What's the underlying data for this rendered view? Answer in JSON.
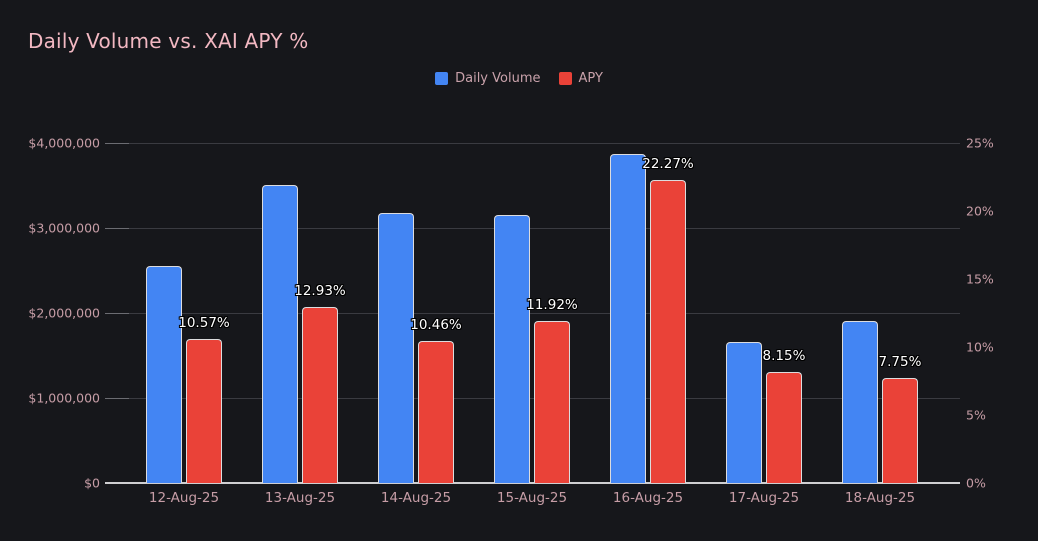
{
  "title": "Daily Volume vs. XAI APY %",
  "legend": [
    {
      "id": "daily-volume",
      "label": "Daily Volume",
      "color": "#4385F3"
    },
    {
      "id": "apy",
      "label": "APY",
      "color": "#EA4238"
    }
  ],
  "colors": {
    "background": "#16171B",
    "title_text": "#F2B8C2",
    "axis_text": "#C69DA6",
    "gridline": "#3A3B41",
    "axis_line": "#CFCFD2",
    "bar_border": "#DCDCDE",
    "volume_bar": "#4385F3",
    "apy_bar": "#EA4238",
    "value_label_text": "#FFFFFF"
  },
  "chart_data": {
    "type": "bar",
    "title": "Daily Volume vs. XAI APY %",
    "categories": [
      "12-Aug-25",
      "13-Aug-25",
      "14-Aug-25",
      "15-Aug-25",
      "16-Aug-25",
      "17-Aug-25",
      "18-Aug-25"
    ],
    "series": [
      {
        "name": "Daily Volume",
        "axis": "left",
        "color": "#4385F3",
        "values": [
          2556000,
          3506000,
          3180000,
          3150000,
          3868000,
          1655000,
          1902000
        ]
      },
      {
        "name": "APY",
        "axis": "right",
        "color": "#EA4238",
        "values": [
          10.57,
          12.93,
          10.46,
          11.92,
          22.27,
          8.15,
          7.75
        ],
        "data_labels": [
          "10.57%",
          "12.93%",
          "10.46%",
          "11.92%",
          "22.27%",
          "8.15%",
          "7.75%"
        ]
      }
    ],
    "left_axis": {
      "min": 0,
      "max": 4000000,
      "tick_step": 1000000,
      "tick_labels": [
        "$0",
        "$1,000,000",
        "$2,000,000",
        "$3,000,000",
        "$4,000,000"
      ]
    },
    "right_axis": {
      "min": 0,
      "max": 25,
      "tick_step": 5,
      "tick_labels": [
        "0%",
        "5%",
        "10%",
        "15%",
        "20%",
        "25%"
      ]
    },
    "grid": true,
    "legend_position": "top-center"
  }
}
